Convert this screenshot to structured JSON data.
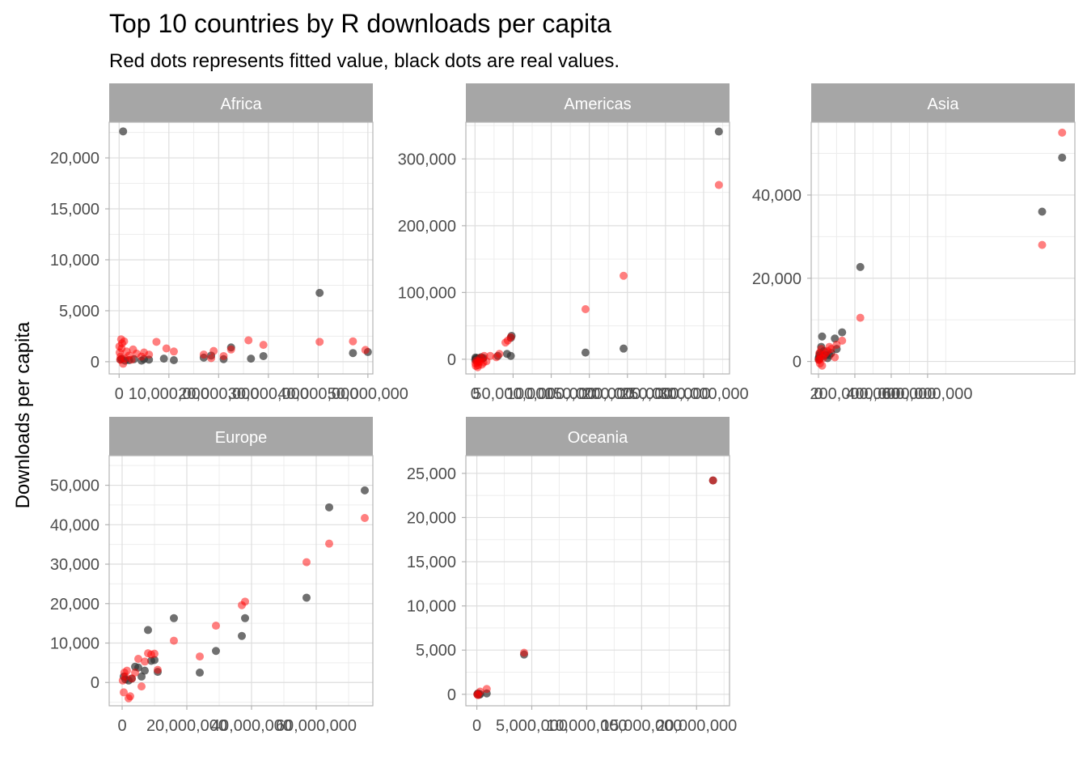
{
  "chart_data": {
    "type": "scatter",
    "title": "Top 10 countries by R downloads per capita",
    "subtitle": "Red dots represents fitted value, black dots are real values.",
    "xlabel": "",
    "ylabel": "Downloads per capita",
    "grid": true,
    "legend": "none",
    "colors": {
      "real": "#333333",
      "fitted": "#ff0000",
      "strip": "#a6a6a6",
      "grid": "#dedede",
      "border": "#b3b3b3"
    },
    "series_roles": [
      "real",
      "fitted"
    ],
    "facets": [
      {
        "label": "Africa",
        "xlim": [
          -2000000,
          51000000
        ],
        "ylim": [
          -1200,
          23500
        ],
        "xticks": [
          0,
          10000000,
          20000000,
          30000000,
          40000000,
          50000000
        ],
        "xtick_labels": [
          "0",
          "10,000,000",
          "20,000,000",
          "30,000,000",
          "40,000,000",
          "50,000,000"
        ],
        "yticks": [
          0,
          5000,
          10000,
          15000,
          20000
        ],
        "ytick_labels": [
          "0",
          "5,000",
          "10,000",
          "15,000",
          "20,000"
        ],
        "real": [
          [
            800000,
            22600
          ],
          [
            40300000,
            6750
          ],
          [
            47000000,
            850
          ],
          [
            50000000,
            950
          ],
          [
            21000000,
            250
          ],
          [
            26500000,
            300
          ],
          [
            29000000,
            550
          ],
          [
            22500000,
            1400
          ],
          [
            18500000,
            600
          ],
          [
            17000000,
            400
          ],
          [
            11000000,
            150
          ],
          [
            9000000,
            300
          ],
          [
            6000000,
            200
          ],
          [
            5000000,
            250
          ],
          [
            4500000,
            100
          ],
          [
            3000000,
            250
          ],
          [
            2000000,
            150
          ],
          [
            1200000,
            100
          ],
          [
            500000,
            300
          ],
          [
            300000,
            200
          ]
        ],
        "fitted": [
          [
            49500000,
            1150
          ],
          [
            47000000,
            2000
          ],
          [
            40300000,
            1950
          ],
          [
            29000000,
            1650
          ],
          [
            26000000,
            2100
          ],
          [
            22500000,
            1200
          ],
          [
            21000000,
            550
          ],
          [
            19000000,
            1050
          ],
          [
            18500000,
            350
          ],
          [
            17000000,
            700
          ],
          [
            11000000,
            1000
          ],
          [
            9500000,
            1300
          ],
          [
            7500000,
            1950
          ],
          [
            6000000,
            700
          ],
          [
            5000000,
            900
          ],
          [
            4500000,
            500
          ],
          [
            3500000,
            800
          ],
          [
            2800000,
            1200
          ],
          [
            2000000,
            600
          ],
          [
            1500000,
            1000
          ],
          [
            1000000,
            2000
          ],
          [
            800000,
            -200
          ],
          [
            500000,
            1300
          ],
          [
            400000,
            2200
          ],
          [
            300000,
            500
          ],
          [
            200000,
            200
          ],
          [
            100000,
            900
          ],
          [
            50000,
            1500
          ],
          [
            600000,
            1800
          ],
          [
            1200000,
            300
          ],
          [
            2500000,
            200
          ]
        ]
      },
      {
        "label": "Americas",
        "xlim": [
          -12000000,
          334000000
        ],
        "ylim": [
          -22000,
          355000
        ],
        "xticks": [
          0,
          50000000,
          100000000,
          150000000,
          200000000,
          250000000,
          300000000
        ],
        "xtick_labels": [
          "0",
          "50,000,000",
          "100,000,000",
          "150,000,000",
          "200,000,000",
          "250,000,000",
          "300,000,000"
        ],
        "yticks": [
          0,
          100000,
          200000,
          300000
        ],
        "ytick_labels": [
          "0",
          "100,000",
          "200,000",
          "300,000"
        ],
        "real": [
          [
            320000000,
            341000
          ],
          [
            195000000,
            16000
          ],
          [
            145000000,
            10000
          ],
          [
            48000000,
            35000
          ],
          [
            47000000,
            32000
          ],
          [
            47000000,
            5000
          ],
          [
            42000000,
            8000
          ],
          [
            30000000,
            5000
          ],
          [
            11000000,
            2000
          ],
          [
            10000000,
            1000
          ],
          [
            8000000,
            3000
          ],
          [
            6000000,
            1000
          ],
          [
            5000000,
            500
          ],
          [
            4000000,
            1500
          ],
          [
            3500000,
            -500
          ],
          [
            3000000,
            1500
          ],
          [
            2000000,
            500
          ],
          [
            1000000,
            1000
          ],
          [
            700000,
            2500
          ],
          [
            300000,
            -1000
          ]
        ],
        "fitted": [
          [
            320000000,
            261000
          ],
          [
            195000000,
            125000
          ],
          [
            145000000,
            75000
          ],
          [
            47000000,
            33000
          ],
          [
            43000000,
            28000
          ],
          [
            40000000,
            25000
          ],
          [
            32000000,
            8000
          ],
          [
            28000000,
            3000
          ],
          [
            15000000,
            -3000
          ],
          [
            12000000,
            5000
          ],
          [
            11000000,
            -5000
          ],
          [
            9000000,
            -8000
          ],
          [
            7000000,
            2000
          ],
          [
            6000000,
            -4000
          ],
          [
            5000000,
            -3000
          ],
          [
            4000000,
            -9000
          ],
          [
            3500000,
            -12000
          ],
          [
            3000000,
            -5000
          ],
          [
            2000000,
            -2000
          ],
          [
            1000000,
            -10000
          ],
          [
            500000,
            -6000
          ],
          [
            20000000,
            5000
          ]
        ]
      },
      {
        "label": "Asia",
        "xlim": [
          -40000000,
          1410000000
        ],
        "ylim": [
          -3000,
          57500
        ],
        "xticks": [
          0,
          200000000,
          400000000,
          600000000
        ],
        "xtick_labels": [
          "0",
          "200,000,000",
          "400,000,000",
          "600,000,000"
        ],
        "yticks": [
          0,
          20000,
          40000
        ],
        "ytick_labels": [
          "0",
          "20,000",
          "40,000"
        ],
        "real": [
          [
            1340000000,
            49000
          ],
          [
            1230000000,
            36000
          ],
          [
            230000000,
            22700
          ],
          [
            130000000,
            7000
          ],
          [
            100000000,
            3000
          ],
          [
            90000000,
            5500
          ],
          [
            70000000,
            2000
          ],
          [
            60000000,
            1500
          ],
          [
            50000000,
            800
          ],
          [
            40000000,
            1500
          ],
          [
            30000000,
            2500
          ],
          [
            20000000,
            6000
          ],
          [
            15000000,
            3500
          ],
          [
            10000000,
            800
          ],
          [
            8000000,
            2000
          ],
          [
            5000000,
            1500
          ],
          [
            3000000,
            1000
          ],
          [
            2000000,
            800
          ],
          [
            1000000,
            500
          ]
        ],
        "fitted": [
          [
            1340000000,
            55000
          ],
          [
            1230000000,
            28000
          ],
          [
            230000000,
            10500
          ],
          [
            130000000,
            5000
          ],
          [
            100000000,
            4000
          ],
          [
            90000000,
            1000
          ],
          [
            70000000,
            3000
          ],
          [
            60000000,
            3500
          ],
          [
            50000000,
            2500
          ],
          [
            40000000,
            2000
          ],
          [
            30000000,
            1500
          ],
          [
            25000000,
            800
          ],
          [
            20000000,
            -1000
          ],
          [
            15000000,
            3000
          ],
          [
            10000000,
            1200
          ],
          [
            8000000,
            -500
          ],
          [
            5000000,
            2000
          ],
          [
            3000000,
            500
          ],
          [
            2000000,
            300
          ]
        ]
      },
      {
        "label": "Europe",
        "xlim": [
          -4000000,
          77500000
        ],
        "ylim": [
          -5900,
          57500
        ],
        "xticks": [
          0,
          20000000,
          40000000,
          60000000
        ],
        "xtick_labels": [
          "0",
          "20,000,000",
          "40,000,000",
          "60,000,000"
        ],
        "yticks": [
          0,
          10000,
          20000,
          30000,
          40000,
          50000
        ],
        "ytick_labels": [
          "0",
          "10,000",
          "20,000",
          "30,000",
          "40,000",
          "50,000"
        ],
        "real": [
          [
            75000000,
            48700
          ],
          [
            64000000,
            44400
          ],
          [
            57000000,
            21500
          ],
          [
            38000000,
            16300
          ],
          [
            37000000,
            11800
          ],
          [
            29000000,
            8000
          ],
          [
            24000000,
            2500
          ],
          [
            16000000,
            16300
          ],
          [
            11000000,
            2700
          ],
          [
            10000000,
            5700
          ],
          [
            9000000,
            5500
          ],
          [
            8000000,
            13300
          ],
          [
            7000000,
            3000
          ],
          [
            6000000,
            1500
          ],
          [
            5000000,
            3800
          ],
          [
            4000000,
            4000
          ],
          [
            3000000,
            1000
          ],
          [
            2000000,
            500
          ],
          [
            1000000,
            800
          ],
          [
            500000,
            1500
          ]
        ],
        "fitted": [
          [
            75000000,
            41700
          ],
          [
            64000000,
            35200
          ],
          [
            57000000,
            30500
          ],
          [
            38000000,
            20500
          ],
          [
            37000000,
            19600
          ],
          [
            29000000,
            14400
          ],
          [
            24000000,
            6600
          ],
          [
            16000000,
            10600
          ],
          [
            11000000,
            3200
          ],
          [
            10000000,
            7300
          ],
          [
            9000000,
            7100
          ],
          [
            8000000,
            7400
          ],
          [
            7000000,
            5300
          ],
          [
            6000000,
            -1000
          ],
          [
            5000000,
            6000
          ],
          [
            4000000,
            2500
          ],
          [
            3000000,
            1000
          ],
          [
            2500000,
            -3500
          ],
          [
            2000000,
            -4000
          ],
          [
            1500000,
            3000
          ],
          [
            1000000,
            1500
          ],
          [
            500000,
            -2500
          ],
          [
            200000,
            500
          ],
          [
            700000,
            2500
          ]
        ]
      },
      {
        "label": "Oceania",
        "xlim": [
          -1000000,
          23000000
        ],
        "ylim": [
          -1300,
          27000
        ],
        "xticks": [
          0,
          5000000,
          10000000,
          15000000,
          20000000
        ],
        "xtick_labels": [
          "0",
          "5,000,000",
          "10,000,000",
          "15,000,000",
          "20,000,000"
        ],
        "yticks": [
          0,
          5000,
          10000,
          15000,
          20000,
          25000
        ],
        "ytick_labels": [
          "0",
          "5,000",
          "10,000",
          "15,000",
          "20,000",
          "25,000"
        ],
        "real": [
          [
            21500000,
            24200
          ],
          [
            4300000,
            4500
          ],
          [
            900000,
            100
          ],
          [
            100000,
            100
          ],
          [
            50000,
            0
          ],
          [
            200000,
            -50
          ],
          [
            300000,
            0
          ]
        ],
        "fitted": [
          [
            21500000,
            24200
          ],
          [
            4300000,
            4700
          ],
          [
            900000,
            600
          ],
          [
            100000,
            -100
          ],
          [
            300000,
            300
          ],
          [
            50000,
            0
          ]
        ]
      }
    ]
  }
}
